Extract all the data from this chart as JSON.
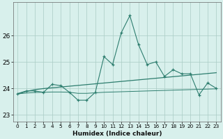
{
  "xlabel": "Humidex (Indice chaleur)",
  "x": [
    0,
    1,
    2,
    3,
    4,
    5,
    6,
    7,
    8,
    9,
    10,
    11,
    12,
    13,
    14,
    15,
    16,
    17,
    18,
    19,
    20,
    21,
    22,
    23
  ],
  "y_main": [
    23.8,
    23.9,
    23.9,
    23.85,
    24.15,
    24.1,
    23.85,
    23.55,
    23.55,
    23.85,
    25.2,
    24.9,
    26.1,
    26.75,
    25.65,
    24.9,
    25.0,
    24.45,
    24.7,
    24.55,
    24.55,
    23.75,
    24.2,
    24.0
  ],
  "y_trend": [
    23.78,
    23.88,
    23.95,
    23.99,
    24.02,
    24.05,
    24.08,
    24.11,
    24.14,
    24.17,
    24.2,
    24.23,
    24.26,
    24.29,
    24.32,
    24.35,
    24.38,
    24.41,
    24.44,
    24.47,
    24.5,
    24.53,
    24.56,
    24.59
  ],
  "y_lower": [
    23.79,
    23.82,
    23.84,
    23.85,
    23.86,
    23.86,
    23.85,
    23.81,
    23.81,
    23.83,
    23.85,
    23.86,
    23.87,
    23.88,
    23.89,
    23.9,
    23.91,
    23.92,
    23.93,
    23.94,
    23.95,
    23.96,
    23.97,
    23.98
  ],
  "line_color": "#2d7d6e",
  "bg_color": "#d8f0ec",
  "grid_color": "#aaccc5",
  "ylim": [
    22.75,
    27.25
  ],
  "yticks": [
    23,
    24,
    25,
    26
  ],
  "xticks": [
    0,
    1,
    2,
    3,
    4,
    5,
    6,
    7,
    8,
    9,
    10,
    11,
    12,
    13,
    14,
    15,
    16,
    17,
    18,
    19,
    20,
    21,
    22,
    23
  ]
}
